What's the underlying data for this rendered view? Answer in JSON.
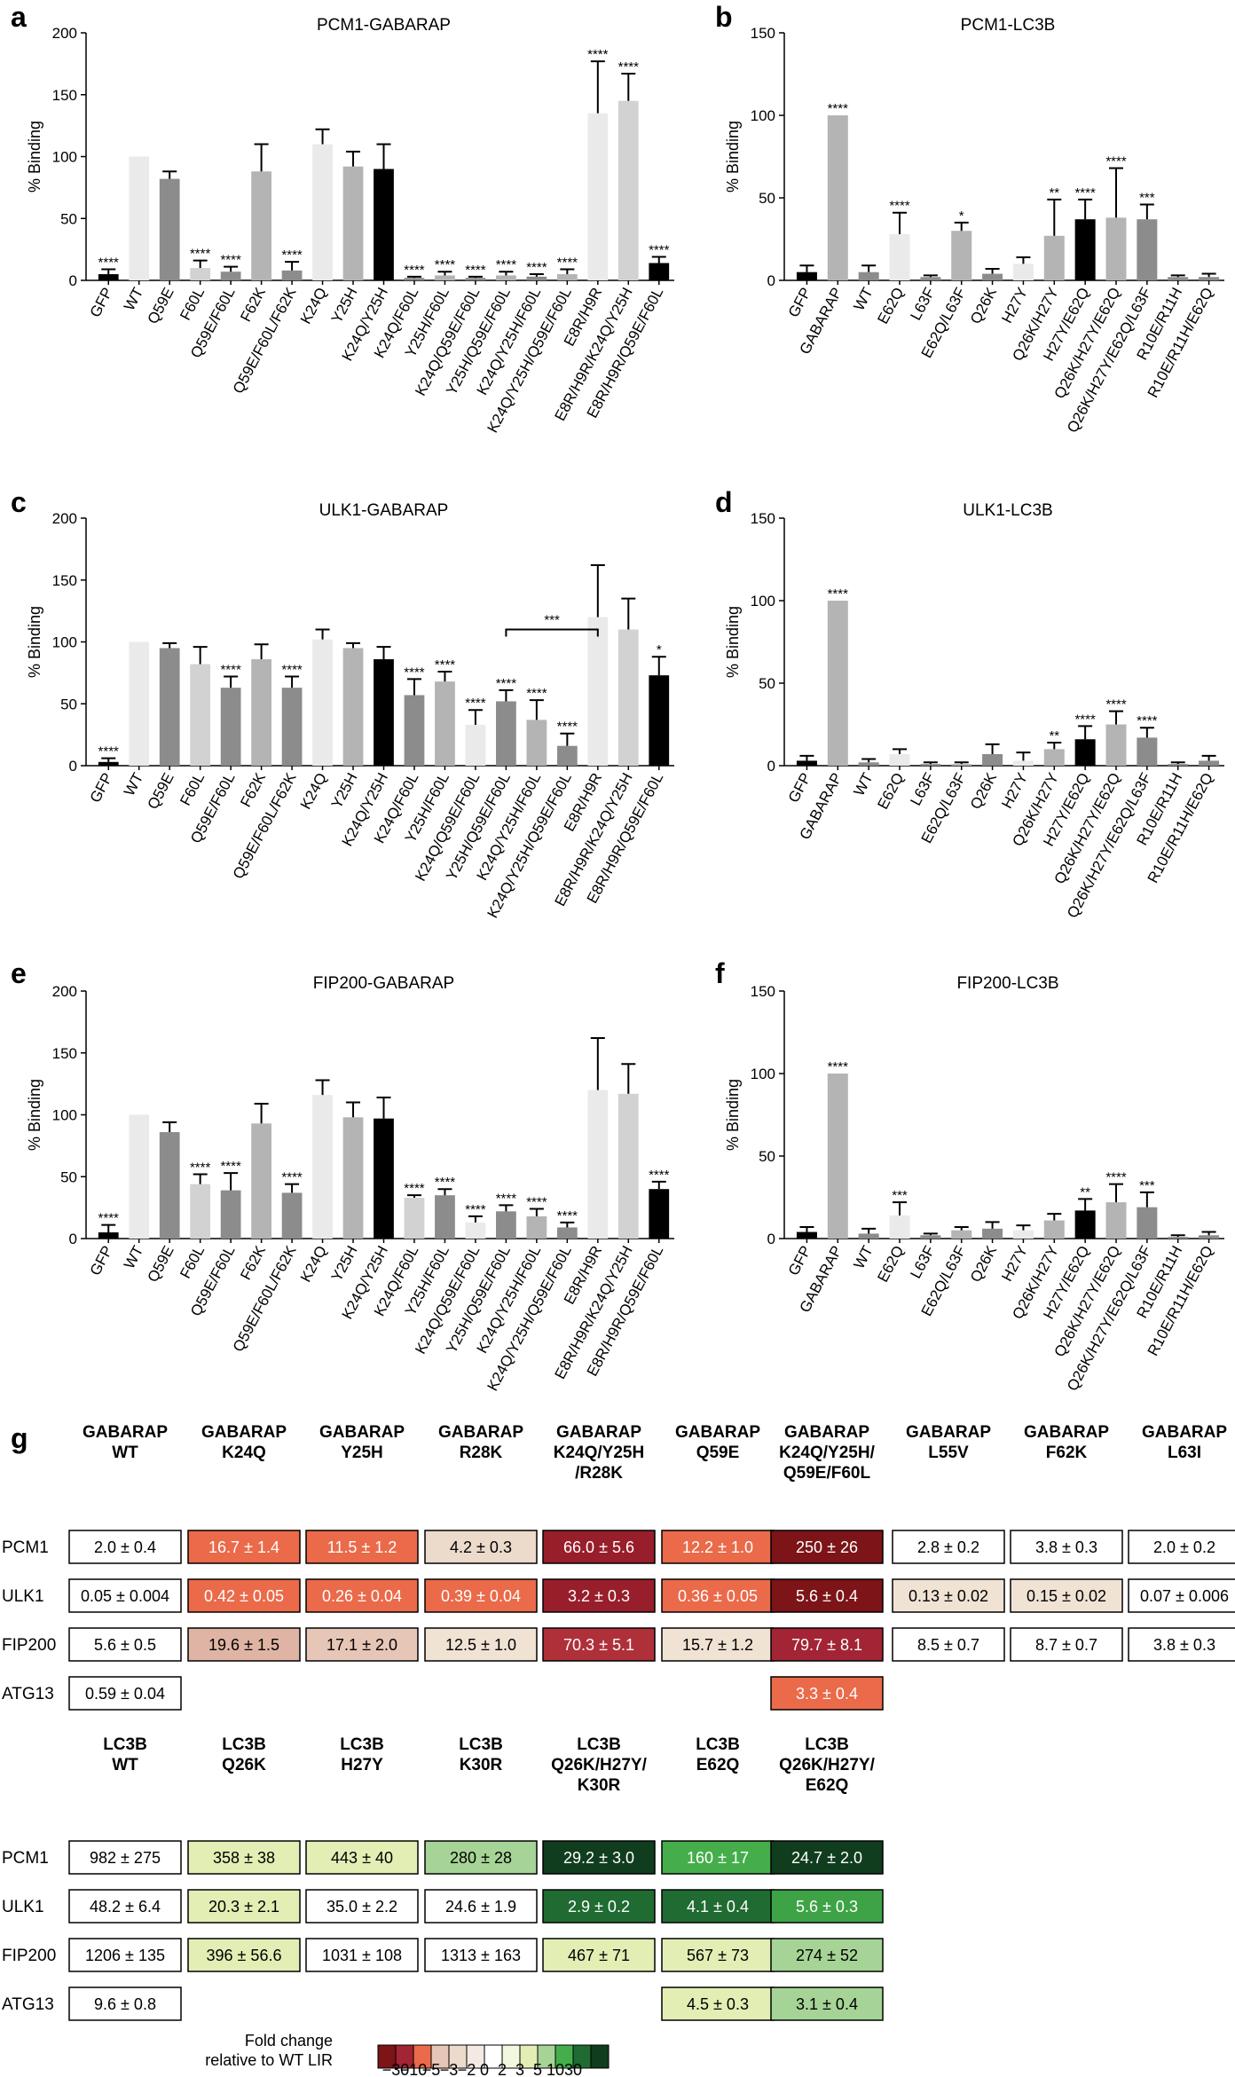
{
  "colors": {
    "black": "#000000",
    "dark": "#555555",
    "mid": "#8c8c8c",
    "light": "#b4b4b4",
    "vlight": "#d2d2d2",
    "xlight": "#eaeaea"
  },
  "chart_data": [
    {
      "type": "bar",
      "letter": "a",
      "title": "PCM1-GABARAP",
      "ylabel": "% Binding",
      "ylim": [
        0,
        200
      ],
      "yticks": [
        0,
        50,
        100,
        150,
        200
      ],
      "categories": [
        "GFP",
        "WT",
        "Q59E",
        "F60L",
        "Q59E/F60L",
        "F62K",
        "Q59E/F60L/F62K",
        "K24Q",
        "Y25H",
        "K24Q/Y25H",
        "K24Q/F60L",
        "Y25H/F60L",
        "K24Q/Q59E/F60L",
        "Y25H/Q59E/F60L",
        "K24Q/Y25H/F60L",
        "K24Q/Y25H/Q59E/F60L",
        "E8R/H9R",
        "E8R/H9R/K24Q/Y25H",
        "E8R/H9R/Q59E/F60L"
      ],
      "values": [
        5,
        100,
        82,
        10,
        7,
        88,
        8,
        110,
        92,
        90,
        2,
        4,
        2,
        4,
        3,
        5,
        135,
        145,
        14
      ],
      "errors": [
        4,
        0,
        6,
        6,
        4,
        22,
        7,
        12,
        12,
        20,
        1,
        3,
        1,
        3,
        2,
        4,
        42,
        22,
        5
      ],
      "shades": [
        "black",
        "xlight",
        "mid",
        "vlight",
        "mid",
        "light",
        "mid",
        "xlight",
        "light",
        "black",
        "mid",
        "light",
        "mid",
        "light",
        "mid",
        "light",
        "xlight",
        "vlight",
        "black"
      ],
      "sig": [
        "****",
        "",
        "",
        "****",
        "****",
        "",
        "****",
        "",
        "",
        "",
        "****",
        "****",
        "****",
        "****",
        "****",
        "****",
        "****",
        "****",
        "****"
      ],
      "brackets": []
    },
    {
      "type": "bar",
      "letter": "b",
      "title": "PCM1-LC3B",
      "ylabel": "% Binding",
      "ylim": [
        0,
        150
      ],
      "yticks": [
        0,
        50,
        100,
        150
      ],
      "categories": [
        "GFP",
        "GABARAP",
        "WT",
        "E62Q",
        "L63F",
        "E62Q/L63F",
        "Q26K",
        "H27Y",
        "Q26K/H27Y",
        "H27Y/E62Q",
        "Q26K/H27Y/E62Q",
        "Q26K/H27Y/E62Q/L63F",
        "R10E/R11H",
        "R10E/R11H/E62Q"
      ],
      "values": [
        5,
        100,
        5,
        28,
        2,
        30,
        4,
        10,
        27,
        37,
        38,
        37,
        2,
        2
      ],
      "errors": [
        4,
        0,
        4,
        13,
        1,
        5,
        3,
        4,
        22,
        12,
        30,
        9,
        1,
        2
      ],
      "shades": [
        "black",
        "light",
        "mid",
        "xlight",
        "mid",
        "light",
        "mid",
        "xlight",
        "light",
        "black",
        "light",
        "mid",
        "mid",
        "mid"
      ],
      "sig": [
        "",
        "****",
        "",
        "****",
        "",
        "*",
        "",
        "",
        "**",
        "****",
        "****",
        "***",
        "",
        ""
      ],
      "brackets": []
    },
    {
      "type": "bar",
      "letter": "c",
      "title": "ULK1-GABARAP",
      "ylabel": "% Binding",
      "ylim": [
        0,
        200
      ],
      "yticks": [
        0,
        50,
        100,
        150,
        200
      ],
      "categories": [
        "GFP",
        "WT",
        "Q59E",
        "F60L",
        "Q59E/F60L",
        "F62K",
        "Q59E/F60L/F62K",
        "K24Q",
        "Y25H",
        "K24Q/Y25H",
        "K24Q/F60L",
        "Y25H/F60L",
        "K24Q/Q59E/F60L",
        "Y25H/Q59E/F60L",
        "K24Q/Y25H/F60L",
        "K24Q/Y25H/Q59E/F60L",
        "E8R/H9R",
        "E8R/H9R/K24Q/Y25H",
        "E8R/H9R/Q59E/F60L"
      ],
      "values": [
        3,
        100,
        95,
        82,
        63,
        86,
        63,
        102,
        95,
        86,
        57,
        68,
        33,
        52,
        37,
        16,
        120,
        110,
        73
      ],
      "errors": [
        3,
        0,
        4,
        14,
        9,
        12,
        9,
        8,
        4,
        10,
        13,
        8,
        12,
        9,
        16,
        10,
        42,
        25,
        15
      ],
      "shades": [
        "black",
        "xlight",
        "mid",
        "vlight",
        "mid",
        "light",
        "mid",
        "xlight",
        "light",
        "black",
        "mid",
        "light",
        "xlight",
        "mid",
        "light",
        "mid",
        "xlight",
        "vlight",
        "black"
      ],
      "sig": [
        "****",
        "",
        "",
        "",
        "****",
        "",
        "****",
        "",
        "",
        "",
        "****",
        "****",
        "****",
        "****",
        "****",
        "****",
        "",
        "",
        "*"
      ],
      "brackets": [
        {
          "from": 13,
          "to": 16,
          "label": "***",
          "y": 110
        }
      ]
    },
    {
      "type": "bar",
      "letter": "d",
      "title": "ULK1-LC3B",
      "ylabel": "% Binding",
      "ylim": [
        0,
        150
      ],
      "yticks": [
        0,
        50,
        100,
        150
      ],
      "categories": [
        "GFP",
        "GABARAP",
        "WT",
        "E62Q",
        "L63F",
        "E62Q/L63F",
        "Q26K",
        "H27Y",
        "Q26K/H27Y",
        "H27Y/E62Q",
        "Q26K/H27Y/E62Q",
        "Q26K/H27Y/E62Q/L63F",
        "R10E/R11H",
        "R10E/R11H/E62Q"
      ],
      "values": [
        3,
        100,
        2,
        7,
        1,
        1,
        7,
        3,
        10,
        16,
        25,
        17,
        1,
        3
      ],
      "errors": [
        3,
        0,
        2,
        3,
        1,
        1,
        6,
        5,
        4,
        8,
        8,
        6,
        1,
        3
      ],
      "shades": [
        "black",
        "light",
        "mid",
        "xlight",
        "mid",
        "light",
        "mid",
        "xlight",
        "light",
        "black",
        "light",
        "mid",
        "mid",
        "mid"
      ],
      "sig": [
        "",
        "****",
        "",
        "",
        "",
        "",
        "",
        "",
        "**",
        "****",
        "****",
        "****",
        "",
        ""
      ],
      "brackets": []
    },
    {
      "type": "bar",
      "letter": "e",
      "title": "FIP200-GABARAP",
      "ylabel": "% Binding",
      "ylim": [
        0,
        200
      ],
      "yticks": [
        0,
        50,
        100,
        150,
        200
      ],
      "categories": [
        "GFP",
        "WT",
        "Q59E",
        "F60L",
        "Q59E/F60L",
        "F62K",
        "Q59E/F60L/F62K",
        "K24Q",
        "Y25H",
        "K24Q/Y25H",
        "K24Q/F60L",
        "Y25H/F60L",
        "K24Q/Q59E/F60L",
        "Y25H/Q59E/F60L",
        "K24Q/Y25H/F60L",
        "K24Q/Y25H/Q59E/F60L",
        "E8R/H9R",
        "E8R/H9R/K24Q/Y25H",
        "E8R/H9R/Q59E/F60L"
      ],
      "values": [
        5,
        100,
        86,
        44,
        39,
        93,
        37,
        116,
        98,
        97,
        33,
        35,
        13,
        22,
        18,
        9,
        120,
        117,
        40
      ],
      "errors": [
        6,
        0,
        8,
        8,
        14,
        16,
        7,
        12,
        12,
        17,
        2,
        5,
        5,
        5,
        6,
        4,
        42,
        24,
        6
      ],
      "shades": [
        "black",
        "xlight",
        "mid",
        "vlight",
        "mid",
        "light",
        "mid",
        "xlight",
        "light",
        "black",
        "vlight",
        "mid",
        "xlight",
        "mid",
        "light",
        "mid",
        "xlight",
        "vlight",
        "black"
      ],
      "sig": [
        "****",
        "",
        "",
        "****",
        "****",
        "",
        "****",
        "",
        "",
        "",
        "****",
        "****",
        "****",
        "****",
        "****",
        "****",
        "",
        "",
        "****"
      ],
      "brackets": []
    },
    {
      "type": "bar",
      "letter": "f",
      "title": "FIP200-LC3B",
      "ylabel": "% Binding",
      "ylim": [
        0,
        150
      ],
      "yticks": [
        0,
        50,
        100,
        150
      ],
      "categories": [
        "GFP",
        "GABARAP",
        "WT",
        "E62Q",
        "L63F",
        "E62Q/L63F",
        "Q26K",
        "H27Y",
        "Q26K/H27Y",
        "H27Y/E62Q",
        "Q26K/H27Y/E62Q",
        "Q26K/H27Y/E62Q/L63F",
        "R10E/R11H",
        "R10E/R11H/E62Q"
      ],
      "values": [
        4,
        100,
        3,
        14,
        2,
        5,
        6,
        5,
        11,
        17,
        22,
        19,
        1,
        2
      ],
      "errors": [
        3,
        0,
        3,
        8,
        1,
        2,
        4,
        3,
        4,
        7,
        11,
        9,
        1,
        2
      ],
      "shades": [
        "black",
        "light",
        "mid",
        "xlight",
        "mid",
        "light",
        "mid",
        "xlight",
        "light",
        "black",
        "light",
        "mid",
        "mid",
        "mid"
      ],
      "sig": [
        "",
        "****",
        "",
        "***",
        "",
        "",
        "",
        "",
        "",
        "**",
        "****",
        "***",
        "",
        ""
      ],
      "brackets": []
    }
  ],
  "heatmap": {
    "letter": "g",
    "gabarap": {
      "headers": [
        [
          "GABARAP",
          "WT"
        ],
        [
          "GABARAP",
          "K24Q"
        ],
        [
          "GABARAP",
          "Y25H"
        ],
        [
          "GABARAP",
          "R28K"
        ],
        [
          "GABARAP",
          "K24Q/Y25H",
          "/R28K"
        ],
        [
          "GABARAP",
          "Q59E"
        ],
        [
          "GABARAP",
          "K24Q/Y25H/",
          "Q59E/F60L"
        ],
        [
          "GABARAP",
          "L55V"
        ],
        [
          "GABARAP",
          "F62K"
        ],
        [
          "GABARAP",
          "L63I"
        ]
      ],
      "rows": [
        {
          "label": "PCM1",
          "cells": [
            {
              "t": "2.0 ± 0.4",
              "c": "#ffffff"
            },
            {
              "t": "16.7 ± 1.4",
              "c": "#ea6a4a"
            },
            {
              "t": "11.5 ± 1.2",
              "c": "#ea6a4a"
            },
            {
              "t": "4.2 ± 0.3",
              "c": "#ecdacb"
            },
            {
              "t": "66.0 ± 5.6",
              "c": "#981e2b"
            },
            {
              "t": "12.2 ± 1.0",
              "c": "#ea6a4a"
            },
            {
              "t": "250 ± 26",
              "c": "#7c1418"
            },
            {
              "t": "2.8 ± 0.2",
              "c": "#ffffff"
            },
            {
              "t": "3.8 ± 0.3",
              "c": "#ffffff"
            },
            {
              "t": "2.0 ± 0.2",
              "c": "#ffffff"
            }
          ]
        },
        {
          "label": "ULK1",
          "cells": [
            {
              "t": "0.05 ± 0.004",
              "c": "#ffffff"
            },
            {
              "t": "0.42 ± 0.05",
              "c": "#ea6a4a"
            },
            {
              "t": "0.26 ± 0.04",
              "c": "#ea6a4a"
            },
            {
              "t": "0.39 ± 0.04",
              "c": "#ea6a4a"
            },
            {
              "t": "3.2 ± 0.3",
              "c": "#981e2b"
            },
            {
              "t": "0.36 ± 0.05",
              "c": "#ea6a4a"
            },
            {
              "t": "5.6 ± 0.4",
              "c": "#7c1418"
            },
            {
              "t": "0.13 ± 0.02",
              "c": "#f1e3d4"
            },
            {
              "t": "0.15 ± 0.02",
              "c": "#f1e3d4"
            },
            {
              "t": "0.07 ± 0.006",
              "c": "#ffffff"
            }
          ]
        },
        {
          "label": "FIP200",
          "cells": [
            {
              "t": "5.6 ± 0.5",
              "c": "#ffffff"
            },
            {
              "t": "19.6 ± 1.5",
              "c": "#e0b4a4"
            },
            {
              "t": "17.1 ± 2.0",
              "c": "#e6c6b6"
            },
            {
              "t": "12.5 ± 1.0",
              "c": "#f1e3d4"
            },
            {
              "t": "70.3 ± 5.1",
              "c": "#b0303a"
            },
            {
              "t": "15.7 ± 1.2",
              "c": "#f1e3d4"
            },
            {
              "t": "79.7 ± 8.1",
              "c": "#a32434"
            },
            {
              "t": "8.5 ± 0.7",
              "c": "#ffffff"
            },
            {
              "t": "8.7 ± 0.7",
              "c": "#ffffff"
            },
            {
              "t": "3.8 ± 0.3",
              "c": "#ffffff"
            }
          ]
        },
        {
          "label": "ATG13",
          "cells": [
            {
              "t": "0.59 ± 0.04",
              "c": "#ffffff"
            },
            null,
            null,
            null,
            null,
            null,
            {
              "t": "3.3 ± 0.4",
              "c": "#ea6a4a"
            },
            null,
            null,
            null
          ]
        }
      ]
    },
    "lc3b": {
      "headers": [
        [
          "LC3B",
          "WT"
        ],
        [
          "LC3B",
          "Q26K"
        ],
        [
          "LC3B",
          "H27Y"
        ],
        [
          "LC3B",
          "K30R"
        ],
        [
          "LC3B",
          "Q26K/H27Y/",
          "K30R"
        ],
        [
          "LC3B",
          "E62Q"
        ],
        [
          "LC3B",
          "Q26K/H27Y/",
          "E62Q"
        ]
      ],
      "rows": [
        {
          "label": "PCM1",
          "cells": [
            {
              "t": "982 ± 275",
              "c": "#ffffff"
            },
            {
              "t": "358 ± 38",
              "c": "#e2eeb4"
            },
            {
              "t": "443 ± 40",
              "c": "#e2eeb4"
            },
            {
              "t": "280 ± 28",
              "c": "#a6d496"
            },
            {
              "t": "29.2 ± 3.0",
              "c": "#103d1e"
            },
            {
              "t": "160 ± 17",
              "c": "#45ae4b"
            },
            {
              "t": "24.7 ± 2.0",
              "c": "#103d1e"
            }
          ]
        },
        {
          "label": "ULK1",
          "cells": [
            {
              "t": "48.2 ± 6.4",
              "c": "#ffffff"
            },
            {
              "t": "20.3 ± 2.1",
              "c": "#e2eeb4"
            },
            {
              "t": "35.0 ± 2.2",
              "c": "#ffffff"
            },
            {
              "t": "24.6 ± 1.9",
              "c": "#ffffff"
            },
            {
              "t": "2.9 ± 0.2",
              "c": "#1f6b32"
            },
            {
              "t": "4.1 ± 0.4",
              "c": "#1f6b32"
            },
            {
              "t": "5.6 ± 0.3",
              "c": "#3ea346"
            }
          ]
        },
        {
          "label": "FIP200",
          "cells": [
            {
              "t": "1206 ± 135",
              "c": "#ffffff"
            },
            {
              "t": "396 ± 56.6",
              "c": "#e2eeb4"
            },
            {
              "t": "1031 ± 108",
              "c": "#ffffff"
            },
            {
              "t": "1313 ± 163",
              "c": "#ffffff"
            },
            {
              "t": "467 ± 71",
              "c": "#e2eeb4"
            },
            {
              "t": "567 ± 73",
              "c": "#e2eeb4"
            },
            {
              "t": "274 ± 52",
              "c": "#a6d496"
            }
          ]
        },
        {
          "label": "ATG13",
          "cells": [
            {
              "t": "9.6 ± 0.8",
              "c": "#ffffff"
            },
            null,
            null,
            null,
            null,
            {
              "t": "4.5 ± 0.3",
              "c": "#e2eeb4"
            },
            {
              "t": "3.1 ± 0.4",
              "c": "#a6d496"
            }
          ]
        }
      ]
    },
    "legend": {
      "title1": "Fold change",
      "title2": "relative to WT LIR",
      "colors": [
        "#7c1418",
        "#a32434",
        "#ea6a4a",
        "#e6c6b6",
        "#ecdacb",
        "#f3ebe3",
        "#ffffff",
        "#f2f7e0",
        "#e2eeb4",
        "#a6d496",
        "#45ae4b",
        "#1f6b32",
        "#103d1e"
      ],
      "labels": [
        "−30",
        "−10",
        "−5",
        "−3",
        "−2",
        "0",
        "2",
        "3",
        "5",
        "10",
        "30"
      ]
    }
  }
}
